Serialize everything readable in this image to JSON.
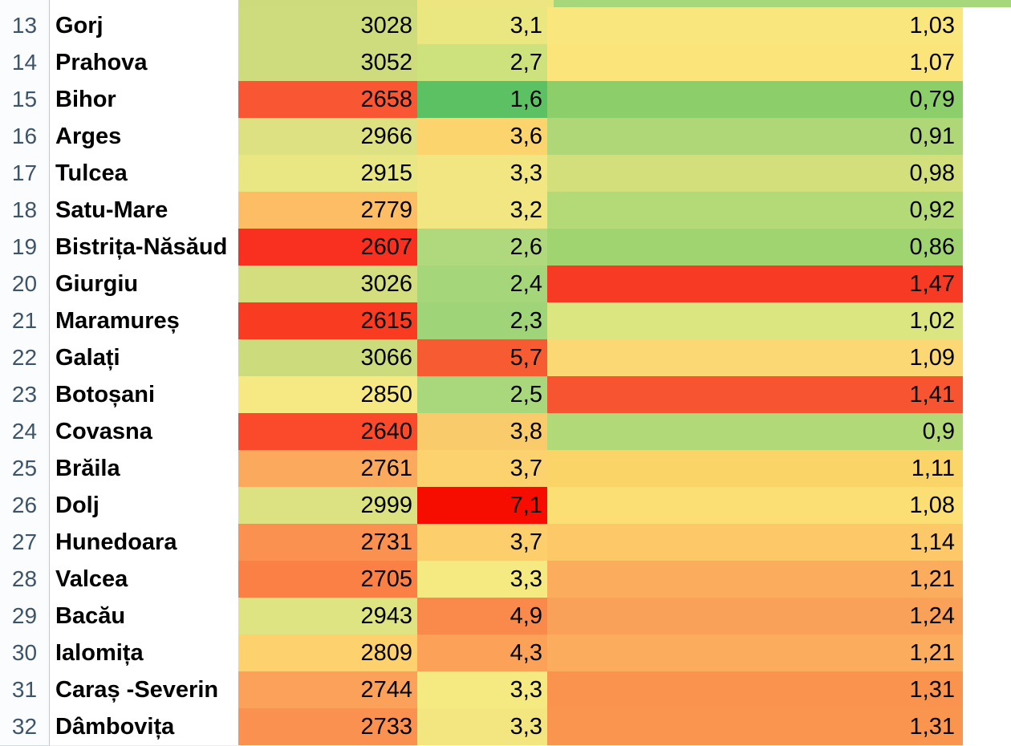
{
  "sheet": {
    "description": "spreadsheet-heatmap-of-county-values",
    "header_column": {
      "text_color": "#3E5468",
      "background": "#FBFCFE",
      "border_color": "#BCC8DA"
    },
    "partial_top_row": {
      "c1_text": "",
      "c2_text": ",",
      "c3_text": ",",
      "c1_color": "#CEDB7C",
      "c2_color": "#EDE580",
      "c3_color": "#A6D77B"
    },
    "rows": [
      {
        "n": "13",
        "county": "Gorj",
        "v1": "3028",
        "v2": "3,1",
        "v3": "1,03",
        "c1": "#CFDC7D",
        "c2": "#EAE781",
        "c3": "#F9E77E"
      },
      {
        "n": "14",
        "county": "Prahova",
        "v1": "3052",
        "v2": "2,7",
        "v3": "1,07",
        "c1": "#CFDC7D",
        "c2": "#CDE27D",
        "c3": "#FBE57B"
      },
      {
        "n": "15",
        "county": "Bihor",
        "v1": "2658",
        "v2": "1,6",
        "v3": "0,79",
        "c1": "#F95634",
        "c2": "#5CC162",
        "c3": "#8CCE69"
      },
      {
        "n": "16",
        "county": "Arges",
        "v1": "2966",
        "v2": "3,6",
        "v3": "0,91",
        "c1": "#DDE181",
        "c2": "#FBD46E",
        "c3": "#AFD777"
      },
      {
        "n": "17",
        "county": "Tulcea",
        "v1": "2915",
        "v2": "3,3",
        "v3": "0,98",
        "c1": "#E9E784",
        "c2": "#F2E682",
        "c3": "#D2DF7B"
      },
      {
        "n": "18",
        "county": "Satu-Mare",
        "v1": "2779",
        "v2": "3,2",
        "v3": "0,92",
        "c1": "#FCBD64",
        "c2": "#F2E682",
        "c3": "#B4D977"
      },
      {
        "n": "19",
        "county": "Bistrița-Năsăud",
        "v1": "2607",
        "v2": "2,6",
        "v3": "0,86",
        "c1": "#F93020",
        "c2": "#AFD97C",
        "c3": "#A0D471"
      },
      {
        "n": "20",
        "county": "Giurgiu",
        "v1": "3026",
        "v2": "2,4",
        "v3": "1,47",
        "c1": "#D4DE7E",
        "c2": "#A5D77A",
        "c3": "#F73A24"
      },
      {
        "n": "21",
        "county": "Maramureș",
        "v1": "2615",
        "v2": "2,3",
        "v3": "1,02",
        "c1": "#F93B22",
        "c2": "#9FD578",
        "c3": "#DCE680"
      },
      {
        "n": "22",
        "county": "Galați",
        "v1": "3066",
        "v2": "5,7",
        "v3": "1,09",
        "c1": "#CCDB7C",
        "c2": "#F75B31",
        "c3": "#FBD873"
      },
      {
        "n": "23",
        "county": "Botoșani",
        "v1": "2850",
        "v2": "2,5",
        "v3": "1,41",
        "c1": "#F6E983",
        "c2": "#A8D87B",
        "c3": "#F75532"
      },
      {
        "n": "24",
        "county": "Covasna",
        "v1": "2640",
        "v2": "3,8",
        "v3": "0,9",
        "c1": "#FA4A2B",
        "c2": "#FACB6B",
        "c3": "#B2D977"
      },
      {
        "n": "25",
        "county": "Brăila",
        "v1": "2761",
        "v2": "3,7",
        "v3": "1,11",
        "c1": "#FBA95C",
        "c2": "#FBD26E",
        "c3": "#FBD468"
      },
      {
        "n": "26",
        "county": "Dolj",
        "v1": "2999",
        "v2": "7,1",
        "v3": "1,08",
        "c1": "#DCE282",
        "c2": "#F60D00",
        "c3": "#FBDF75"
      },
      {
        "n": "27",
        "county": "Hunedoara",
        "v1": "2731",
        "v2": "3,7",
        "v3": "1,14",
        "c1": "#FA9150",
        "c2": "#FCCE6C",
        "c3": "#FCC868"
      },
      {
        "n": "28",
        "county": "Valcea",
        "v1": "2705",
        "v2": "3,3",
        "v3": "1,21",
        "c1": "#FA8046",
        "c2": "#F5E981",
        "c3": "#FBAC5C"
      },
      {
        "n": "29",
        "county": "Bacău",
        "v1": "2943",
        "v2": "4,9",
        "v3": "1,24",
        "c1": "#DFE483",
        "c2": "#F98A4C",
        "c3": "#FAA159"
      },
      {
        "n": "30",
        "county": "Ialomița",
        "v1": "2809",
        "v2": "4,3",
        "v3": "1,21",
        "c1": "#FCD16E",
        "c2": "#FBA258",
        "c3": "#FBAC5C"
      },
      {
        "n": "31",
        "county": "Caraș -Severin",
        "v1": "2744",
        "v2": "3,3",
        "v3": "1,31",
        "c1": "#FBA159",
        "c2": "#F5E981",
        "c3": "#F9934E"
      }
    ],
    "partial_bottom_row": {
      "n": "32",
      "county": "Dâmbovița",
      "v1": "2733",
      "v2": "3,3",
      "v3": "1,31",
      "c1": "#FA9150",
      "c2": "#F3E681",
      "c3": "#F9954F"
    }
  }
}
